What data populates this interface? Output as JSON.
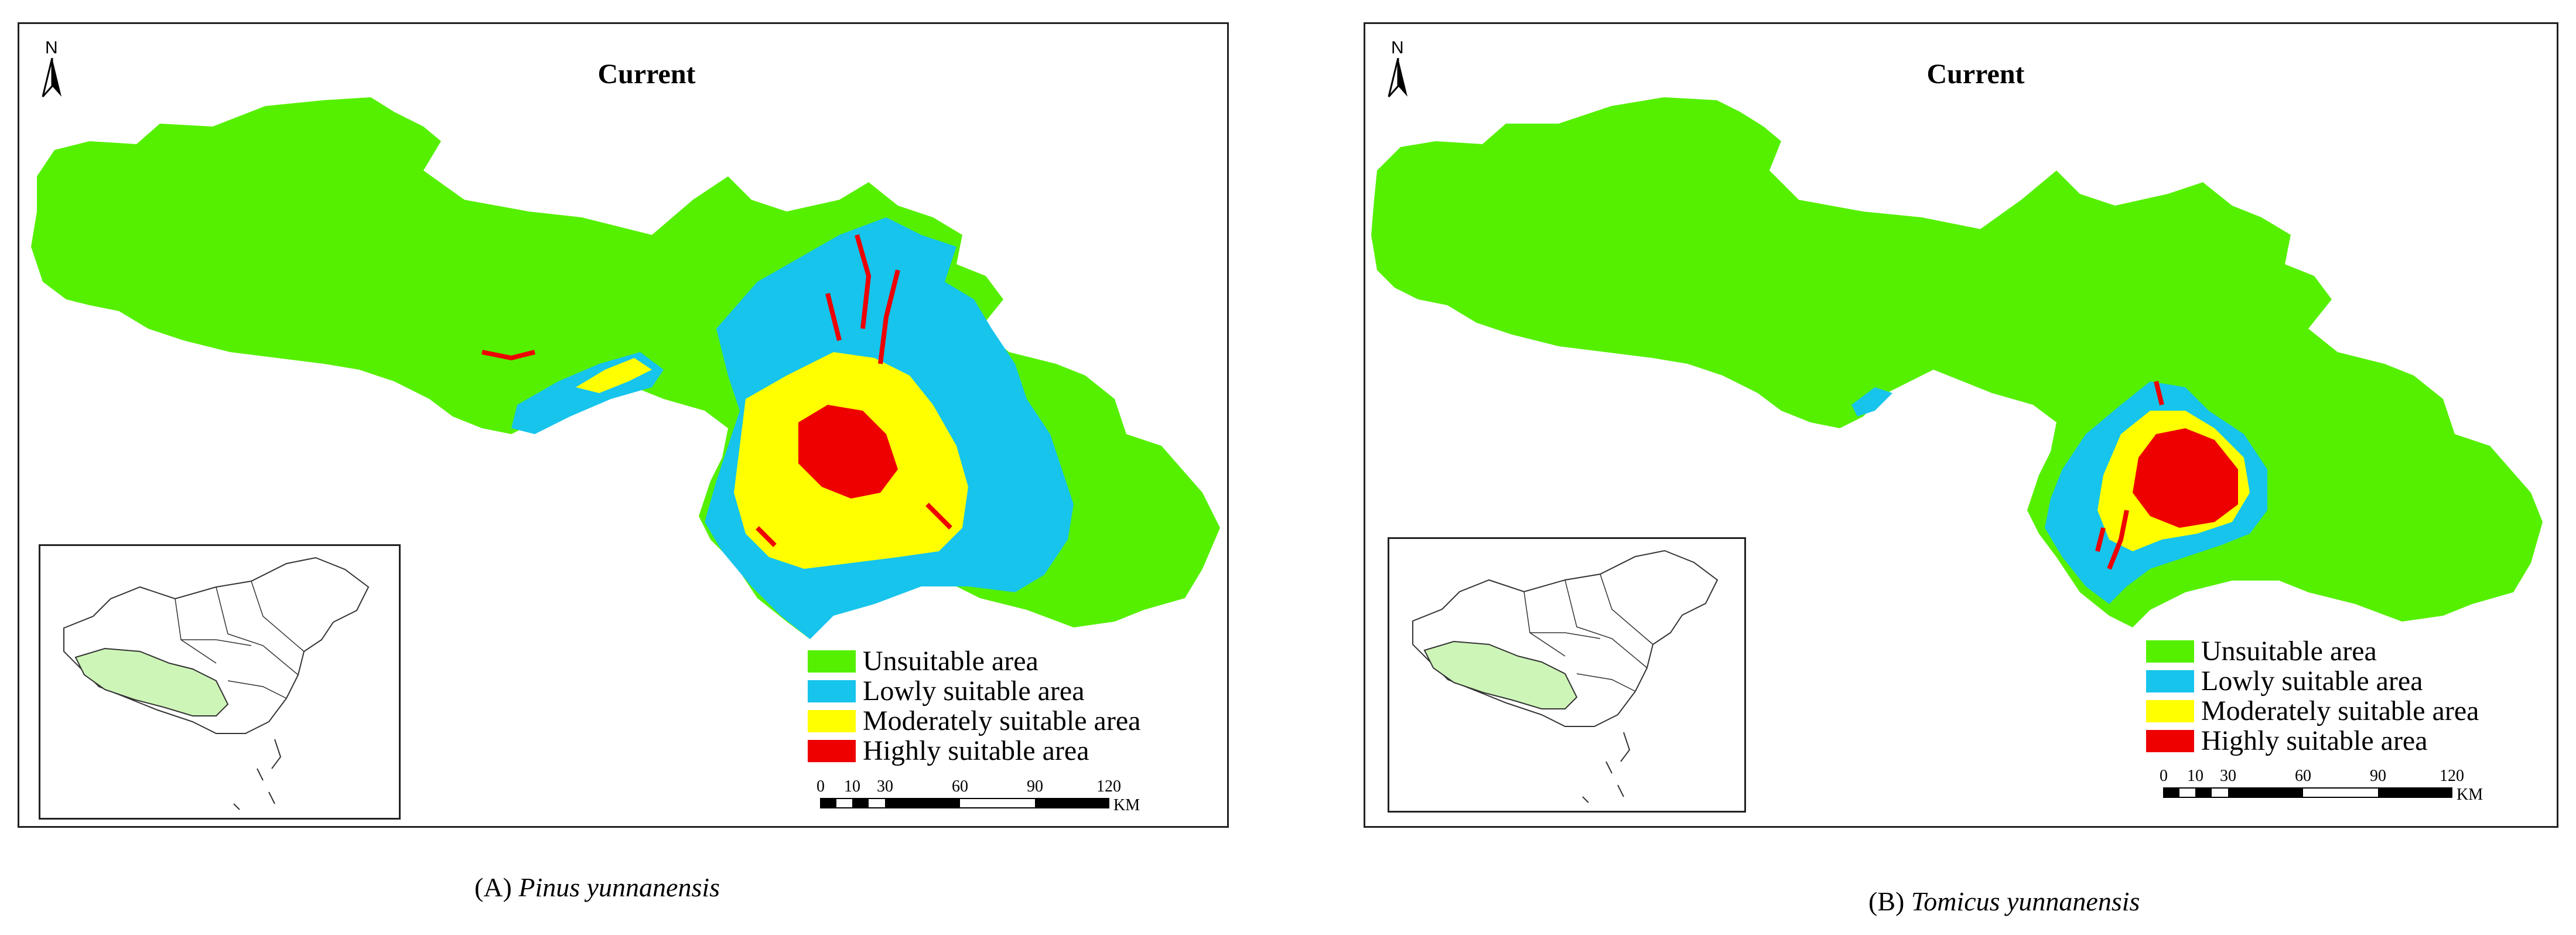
{
  "colors": {
    "unsuitable": "#55f000",
    "lowly": "#16c4ec",
    "moderately": "#ffff00",
    "highly": "#ee0000",
    "inset_highlight": "#cef5b8"
  },
  "icons": [
    "north-arrow-icon"
  ],
  "north_label": "N",
  "legend": {
    "unsuitable": "Unsuitable area",
    "lowly": "Lowly suitable area",
    "moderately": "Moderately suitable area",
    "highly": "Highly suitable area"
  },
  "scale": {
    "ticks": [
      "0",
      "10",
      "30",
      "60",
      "90",
      "120"
    ],
    "unit": "KM"
  },
  "panels": [
    {
      "title": "Current",
      "caption_label": "(A)",
      "caption_species": "Pinus yunnanensis"
    },
    {
      "title": "Current",
      "caption_label": "(B)",
      "caption_species": "Tomicus yunnanensis"
    }
  ]
}
